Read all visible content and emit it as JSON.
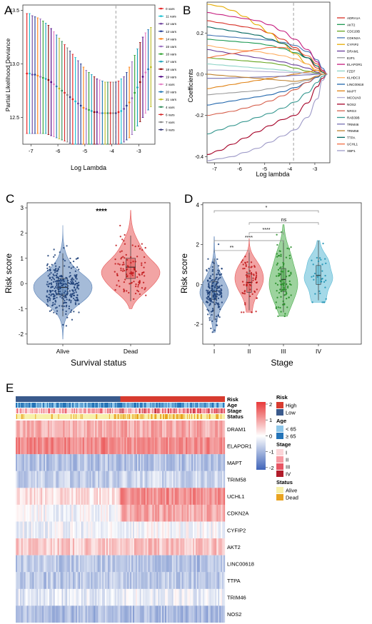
{
  "panels": {
    "A": {
      "letter": "A",
      "chart_type": "scatter",
      "xlabel": "Log Lambda",
      "ylabel": "Partial Likelihood Deviance",
      "x_ticks": [
        -7,
        -6,
        -5,
        -4,
        -3
      ],
      "y_ticks": [
        12.5,
        13.0,
        13.5
      ],
      "xlim": [
        -7.3,
        -2.4
      ],
      "ylim": [
        12.25,
        13.55
      ],
      "lambda_min_line": -3.85,
      "legend": [
        "0 vars",
        "11 vars",
        "12 vars",
        "13 vars",
        "14 vars",
        "15 vars",
        "16 vars",
        "17 vars",
        "18 vars",
        "19 vars",
        "2 vars",
        "20 vars",
        "21 vars",
        "4 vars",
        "6 vars",
        "7 vars",
        "9 vars"
      ],
      "legend_colors": [
        "#e41a1c",
        "#17becf",
        "#6a3d9a",
        "#1f3a93",
        "#ff7f0e",
        "#9467bd",
        "#2ca02c",
        "#17a2b8",
        "#8b0000",
        "#4b0082",
        "#e377c2",
        "#1f77b4",
        "#bcbd22",
        "#2e8b57",
        "#d62728",
        "#7f7f7f",
        "#393b79"
      ],
      "points": [
        {
          "x": -7.15,
          "y": 12.91,
          "lo": 12.35,
          "hi": 13.47
        },
        {
          "x": -7.05,
          "y": 12.91,
          "lo": 12.35,
          "hi": 13.47
        },
        {
          "x": -6.95,
          "y": 12.9,
          "lo": 12.35,
          "hi": 13.45
        },
        {
          "x": -6.85,
          "y": 12.9,
          "lo": 12.35,
          "hi": 13.44
        },
        {
          "x": -6.75,
          "y": 12.89,
          "lo": 12.35,
          "hi": 13.43
        },
        {
          "x": -6.65,
          "y": 12.88,
          "lo": 12.35,
          "hi": 13.42
        },
        {
          "x": -6.55,
          "y": 12.87,
          "lo": 12.35,
          "hi": 13.4
        },
        {
          "x": -6.45,
          "y": 12.86,
          "lo": 12.35,
          "hi": 13.38
        },
        {
          "x": -6.35,
          "y": 12.85,
          "lo": 12.34,
          "hi": 13.36
        },
        {
          "x": -6.25,
          "y": 12.83,
          "lo": 12.33,
          "hi": 13.33
        },
        {
          "x": -6.15,
          "y": 12.81,
          "lo": 12.32,
          "hi": 13.3
        },
        {
          "x": -6.05,
          "y": 12.79,
          "lo": 12.31,
          "hi": 13.27
        },
        {
          "x": -5.95,
          "y": 12.77,
          "lo": 12.3,
          "hi": 13.24
        },
        {
          "x": -5.85,
          "y": 12.75,
          "lo": 12.29,
          "hi": 13.21
        },
        {
          "x": -5.75,
          "y": 12.73,
          "lo": 12.28,
          "hi": 13.18
        },
        {
          "x": -5.65,
          "y": 12.71,
          "lo": 12.27,
          "hi": 13.15
        },
        {
          "x": -5.55,
          "y": 12.69,
          "lo": 12.26,
          "hi": 13.12
        },
        {
          "x": -5.45,
          "y": 12.67,
          "lo": 12.25,
          "hi": 13.09
        },
        {
          "x": -5.35,
          "y": 12.65,
          "lo": 12.25,
          "hi": 13.06
        },
        {
          "x": -5.25,
          "y": 12.63,
          "lo": 12.25,
          "hi": 13.03
        },
        {
          "x": -5.15,
          "y": 12.61,
          "lo": 12.25,
          "hi": 13.0
        },
        {
          "x": -5.05,
          "y": 12.59,
          "lo": 12.25,
          "hi": 12.97
        },
        {
          "x": -4.95,
          "y": 12.58,
          "lo": 12.25,
          "hi": 12.94
        },
        {
          "x": -4.85,
          "y": 12.57,
          "lo": 12.25,
          "hi": 12.92
        },
        {
          "x": -4.75,
          "y": 12.56,
          "lo": 12.25,
          "hi": 12.9
        },
        {
          "x": -4.65,
          "y": 12.55,
          "lo": 12.25,
          "hi": 12.88
        },
        {
          "x": -4.55,
          "y": 12.55,
          "lo": 12.25,
          "hi": 12.86
        },
        {
          "x": -4.45,
          "y": 12.54,
          "lo": 12.25,
          "hi": 12.85
        },
        {
          "x": -4.35,
          "y": 12.54,
          "lo": 12.25,
          "hi": 12.84
        },
        {
          "x": -4.25,
          "y": 12.54,
          "lo": 12.25,
          "hi": 12.83
        },
        {
          "x": -4.15,
          "y": 12.54,
          "lo": 12.25,
          "hi": 12.83
        },
        {
          "x": -4.05,
          "y": 12.54,
          "lo": 12.25,
          "hi": 12.83
        },
        {
          "x": -3.95,
          "y": 12.54,
          "lo": 12.25,
          "hi": 12.83
        },
        {
          "x": -3.85,
          "y": 12.54,
          "lo": 12.25,
          "hi": 12.83
        },
        {
          "x": -3.75,
          "y": 12.55,
          "lo": 12.25,
          "hi": 12.84
        },
        {
          "x": -3.65,
          "y": 12.56,
          "lo": 12.26,
          "hi": 12.86
        },
        {
          "x": -3.55,
          "y": 12.58,
          "lo": 12.27,
          "hi": 12.88
        },
        {
          "x": -3.45,
          "y": 12.61,
          "lo": 12.29,
          "hi": 12.92
        },
        {
          "x": -3.35,
          "y": 12.64,
          "lo": 12.31,
          "hi": 12.97
        },
        {
          "x": -3.25,
          "y": 12.68,
          "lo": 12.34,
          "hi": 13.02
        },
        {
          "x": -3.15,
          "y": 12.73,
          "lo": 12.38,
          "hi": 13.08
        },
        {
          "x": -3.05,
          "y": 12.78,
          "lo": 12.42,
          "hi": 13.14
        },
        {
          "x": -2.95,
          "y": 12.83,
          "lo": 12.46,
          "hi": 13.2
        },
        {
          "x": -2.85,
          "y": 12.88,
          "lo": 12.5,
          "hi": 13.25
        },
        {
          "x": -2.75,
          "y": 12.92,
          "lo": 12.54,
          "hi": 13.29
        },
        {
          "x": -2.65,
          "y": 12.95,
          "lo": 12.57,
          "hi": 13.32
        },
        {
          "x": -2.55,
          "y": 12.97,
          "lo": 12.6,
          "hi": 13.34
        }
      ]
    },
    "B": {
      "letter": "B",
      "chart_type": "line",
      "xlabel": "Log lambda",
      "ylabel": "Coefficients",
      "x_ticks": [
        -7,
        -6,
        -5,
        -4,
        -3
      ],
      "y_ticks": [
        -0.4,
        -0.2,
        0.0,
        0.2
      ],
      "xlim": [
        -7.3,
        -2.4
      ],
      "ylim": [
        -0.43,
        0.35
      ],
      "lambda_min_line": -3.85,
      "x": [
        -7.3,
        -6.8,
        -6.3,
        -5.8,
        -5.3,
        -4.8,
        -4.3,
        -3.8,
        -3.3,
        -2.9,
        -2.7,
        -2.5
      ],
      "series": [
        {
          "name": "ADRA1A",
          "color": "#d73027",
          "values": [
            0.26,
            0.25,
            0.24,
            0.23,
            0.22,
            0.2,
            0.17,
            0.13,
            0.08,
            0.03,
            0.01,
            0.0
          ]
        },
        {
          "name": "AKT2",
          "color": "#1a9850",
          "values": [
            0.17,
            0.165,
            0.16,
            0.155,
            0.15,
            0.14,
            0.125,
            0.105,
            0.08,
            0.05,
            0.02,
            0.0
          ]
        },
        {
          "name": "CDC20B",
          "color": "#66a61e",
          "values": [
            0.08,
            0.075,
            0.07,
            0.065,
            0.06,
            0.055,
            0.045,
            0.03,
            0.015,
            0.005,
            0.0,
            0.0
          ]
        },
        {
          "name": "CDKN2A",
          "color": "#4575b4",
          "values": [
            0.19,
            0.185,
            0.18,
            0.175,
            0.17,
            0.165,
            0.155,
            0.14,
            0.11,
            0.07,
            0.03,
            0.0
          ]
        },
        {
          "name": "CYFIP2",
          "color": "#e6ab02",
          "values": [
            0.34,
            0.33,
            0.31,
            0.28,
            0.24,
            0.2,
            0.15,
            0.1,
            0.05,
            0.01,
            0.0,
            0.0
          ]
        },
        {
          "name": "DRAM1",
          "color": "#6a3d9a",
          "values": [
            0.12,
            0.11,
            0.1,
            0.09,
            0.08,
            0.07,
            0.06,
            0.045,
            0.03,
            0.01,
            0.0,
            0.0
          ]
        },
        {
          "name": "E2F1",
          "color": "#999999",
          "values": [
            -0.1,
            -0.095,
            -0.09,
            -0.085,
            -0.08,
            -0.07,
            -0.06,
            -0.045,
            -0.03,
            -0.01,
            0.0,
            0.0
          ]
        },
        {
          "name": "ELAPOR1",
          "color": "#c51b7d",
          "values": [
            0.3,
            0.29,
            0.28,
            0.27,
            0.26,
            0.24,
            0.21,
            0.17,
            0.12,
            0.06,
            0.02,
            0.0
          ]
        },
        {
          "name": "FZD7",
          "color": "#8dd3c7",
          "values": [
            0.05,
            0.045,
            0.04,
            0.035,
            0.03,
            0.025,
            0.02,
            0.012,
            0.005,
            0.0,
            0.0,
            0.0
          ]
        },
        {
          "name": "KLHDC3",
          "color": "#fdae61",
          "values": [
            0.14,
            0.13,
            0.12,
            0.115,
            0.11,
            0.1,
            0.09,
            0.075,
            0.05,
            0.02,
            0.0,
            0.0
          ]
        },
        {
          "name": "LINC00618",
          "color": "#2166ac",
          "values": [
            -0.15,
            -0.14,
            -0.13,
            -0.12,
            -0.11,
            -0.1,
            -0.085,
            -0.065,
            -0.04,
            -0.015,
            0.0,
            0.0
          ]
        },
        {
          "name": "MAPT",
          "color": "#e08214",
          "values": [
            -0.07,
            -0.06,
            -0.05,
            -0.04,
            -0.03,
            -0.02,
            -0.01,
            0.0,
            0.01,
            0.02,
            0.01,
            0.0
          ]
        },
        {
          "name": "MCOLN3",
          "color": "#b2abd2",
          "values": [
            0.02,
            0.02,
            0.018,
            0.016,
            0.014,
            0.012,
            0.01,
            0.008,
            0.005,
            0.002,
            0.0,
            0.0
          ]
        },
        {
          "name": "NOS2",
          "color": "#a50026",
          "values": [
            -0.39,
            -0.37,
            -0.34,
            -0.31,
            -0.28,
            -0.25,
            -0.22,
            -0.2,
            -0.14,
            -0.06,
            -0.02,
            0.0
          ]
        },
        {
          "name": "NRG3",
          "color": "#d6604d",
          "values": [
            -0.2,
            -0.19,
            -0.18,
            -0.165,
            -0.15,
            -0.13,
            -0.105,
            -0.075,
            -0.04,
            -0.01,
            0.0,
            0.0
          ]
        },
        {
          "name": "RAB39B",
          "color": "#35978f",
          "values": [
            -0.29,
            -0.27,
            -0.25,
            -0.23,
            -0.21,
            -0.19,
            -0.165,
            -0.135,
            -0.09,
            -0.04,
            -0.01,
            0.0
          ]
        },
        {
          "name": "TRIM46",
          "color": "#7570b3",
          "values": [
            -0.02,
            -0.02,
            -0.018,
            -0.016,
            -0.014,
            -0.012,
            -0.01,
            -0.006,
            -0.003,
            0.0,
            0.0,
            0.0
          ]
        },
        {
          "name": "TRIM58",
          "color": "#bf812d",
          "values": [
            0.0,
            -0.005,
            -0.01,
            -0.015,
            -0.02,
            -0.025,
            -0.03,
            -0.035,
            -0.025,
            -0.01,
            0.0,
            0.0
          ]
        },
        {
          "name": "TTPA",
          "color": "#01665e",
          "values": [
            0.23,
            0.22,
            0.21,
            0.2,
            0.19,
            0.17,
            0.15,
            0.12,
            0.08,
            0.04,
            0.01,
            0.0
          ]
        },
        {
          "name": "UCHL1",
          "color": "#f46d43",
          "values": [
            0.08,
            0.09,
            0.1,
            0.11,
            0.12,
            0.13,
            0.13,
            0.12,
            0.09,
            0.05,
            0.015,
            0.0
          ]
        },
        {
          "name": "XBP1",
          "color": "#9e9ac8",
          "values": [
            -0.42,
            -0.41,
            -0.4,
            -0.38,
            -0.36,
            -0.33,
            -0.3,
            -0.27,
            -0.21,
            -0.12,
            -0.03,
            0.0
          ]
        }
      ]
    },
    "C": {
      "letter": "C",
      "chart_type": "violin",
      "xlabel": "Survival status",
      "ylabel": "Risk score",
      "categories": [
        "Alive",
        "Dead"
      ],
      "y_ticks": [
        -2,
        -1,
        0,
        1,
        2,
        3
      ],
      "ylim": [
        -2.4,
        3.2
      ],
      "significance": "****",
      "colors": [
        "#5b83b8",
        "#e85a5a"
      ],
      "groups": [
        {
          "median": -0.15,
          "q1": -0.45,
          "q3": 0.2,
          "whisker_lo": -1.3,
          "whisker_hi": 1.2,
          "min": -2.2,
          "max": 2.3,
          "n": 300,
          "seed": 11
        },
        {
          "median": 0.65,
          "q1": 0.2,
          "q3": 1.0,
          "whisker_lo": -0.7,
          "whisker_hi": 1.9,
          "min": -1.0,
          "max": 2.9,
          "n": 110,
          "seed": 23
        }
      ]
    },
    "D": {
      "letter": "D",
      "chart_type": "violin",
      "xlabel": "Stage",
      "ylabel": "Risk score",
      "categories": [
        "I",
        "II",
        "III",
        "IV"
      ],
      "y_ticks": [
        -2,
        0,
        2,
        4
      ],
      "ylim": [
        -3.0,
        4.1
      ],
      "colors": [
        "#5b83b8",
        "#e85a5a",
        "#4cae4f",
        "#5bbad5"
      ],
      "comparisons": [
        {
          "from": 0,
          "to": 3,
          "label": "*"
        },
        {
          "from": 1,
          "to": 3,
          "label": "ns"
        },
        {
          "from": 1,
          "to": 2,
          "label": "****"
        },
        {
          "from": 0,
          "to": 2,
          "label": "****"
        },
        {
          "from": 0,
          "to": 1,
          "label": "**"
        }
      ],
      "groups": [
        {
          "median": -0.35,
          "q1": -0.75,
          "q3": 0.15,
          "whisker_lo": -1.8,
          "whisker_hi": 1.3,
          "min": -2.4,
          "max": 2.4,
          "n": 180,
          "seed": 5
        },
        {
          "median": 0.1,
          "q1": -0.4,
          "q3": 0.55,
          "whisker_lo": -1.3,
          "whisker_hi": 1.6,
          "min": -1.4,
          "max": 2.3,
          "n": 70,
          "seed": 9
        },
        {
          "median": 0.25,
          "q1": -0.35,
          "q3": 0.8,
          "whisker_lo": -1.4,
          "whisker_hi": 2.2,
          "min": -1.6,
          "max": 3.0,
          "n": 90,
          "seed": 17
        },
        {
          "median": 0.45,
          "q1": 0.0,
          "q3": 0.95,
          "whisker_lo": -0.8,
          "whisker_hi": 2.2,
          "min": -0.9,
          "max": 2.2,
          "n": 32,
          "seed": 29
        }
      ]
    },
    "E": {
      "letter": "E",
      "chart_type": "heatmap",
      "annotation_rows": [
        "Risk",
        "Age",
        "Stage",
        "Status"
      ],
      "genes": [
        "DRAM1",
        "ELAPOR1",
        "MAPT",
        "TRIM58",
        "UCHL1",
        "CDKN2A",
        "CYFIP2",
        "AKT2",
        "LINC00618",
        "TTPA",
        "TRIM46",
        "NOS2"
      ],
      "gene_means_low_risk": [
        0.9,
        1.4,
        -0.9,
        -0.7,
        0.4,
        -0.1,
        -0.2,
        0.6,
        -0.8,
        -0.8,
        -0.3,
        -1.0
      ],
      "gene_means_high_risk": [
        1.0,
        1.3,
        -0.9,
        -0.6,
        1.3,
        1.0,
        -0.1,
        0.7,
        -0.9,
        -0.8,
        -0.2,
        -1.0
      ],
      "scale_ticks": [
        2,
        1,
        0,
        -1,
        -2
      ],
      "scale_colors": [
        "#e8393a",
        "#ffffff",
        "#4064b9"
      ],
      "risk_split_fraction": 0.5,
      "legend": {
        "risk": {
          "title": "Risk",
          "items": [
            {
              "label": "High",
              "color": "#d73b2f"
            },
            {
              "label": "Low",
              "color": "#3a5a8c"
            }
          ]
        },
        "age": {
          "title": "Age",
          "items": [
            {
              "label": "< 65",
              "color": "#8ec7ea"
            },
            {
              "label": "≥ 65",
              "color": "#2474b8"
            }
          ]
        },
        "stage": {
          "title": "Stage",
          "items": [
            {
              "label": "I",
              "color": "#fbd5d8"
            },
            {
              "label": "II",
              "color": "#f79aa2"
            },
            {
              "label": "III",
              "color": "#e85563"
            },
            {
              "label": "IV",
              "color": "#b11c2a"
            }
          ]
        },
        "status": {
          "title": "Status",
          "items": [
            {
              "label": "Alive",
              "color": "#f7f0a8"
            },
            {
              "label": "Dead",
              "color": "#e9a31f"
            }
          ]
        }
      }
    }
  }
}
